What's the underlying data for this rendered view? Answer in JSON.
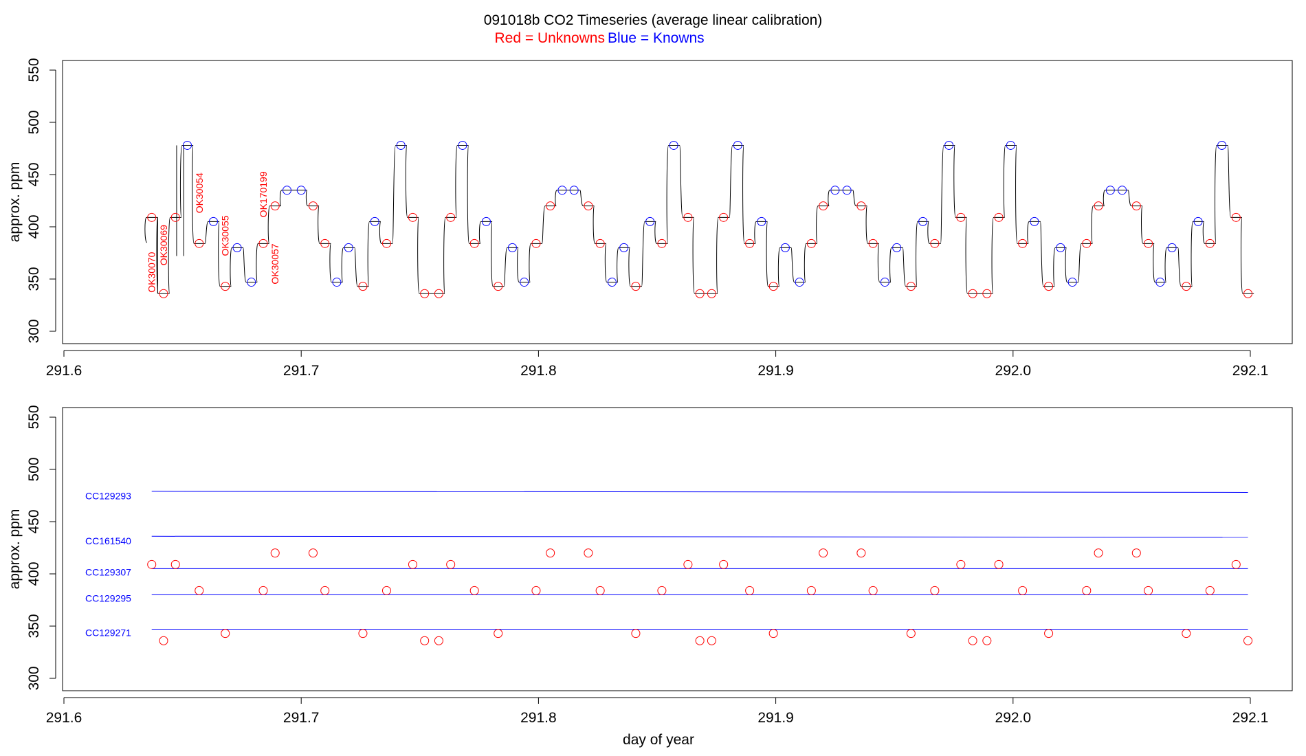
{
  "header": {
    "title": "091018b   CO2 Timeseries (average linear calibration)",
    "legend_red": "Red = Unknowns",
    "legend_blue": "Blue = Knowns"
  },
  "colors": {
    "unknown": "#ff0000",
    "known": "#0000ff",
    "trace": "#000000"
  },
  "chart_data": [
    {
      "type": "line",
      "panel": "top",
      "title": "091018b   CO2 Timeseries (average linear calibration)",
      "xlabel": "",
      "ylabel": "approx. ppm",
      "xlim": [
        291.6,
        292.1
      ],
      "ylim": [
        300,
        550
      ],
      "xticks": [
        "291.6",
        "291.7",
        "291.8",
        "291.9",
        "292.0",
        "292.1"
      ],
      "yticks": [
        "300",
        "350",
        "400",
        "450",
        "500",
        "550"
      ],
      "grid": false,
      "sample_labels": [
        {
          "text": "OK30070",
          "x": 291.637,
          "y": 337
        },
        {
          "text": "OK30069",
          "x": 291.642,
          "y": 363
        },
        {
          "text": "OK30054",
          "x": 291.657,
          "y": 413
        },
        {
          "text": "OK30055",
          "x": 291.668,
          "y": 372
        },
        {
          "text": "OK170199",
          "x": 291.684,
          "y": 409
        },
        {
          "text": "OK30057",
          "x": 291.689,
          "y": 345
        }
      ],
      "series": [
        {
          "name": "Unknowns",
          "color": "#ff0000",
          "x": [
            291.637,
            291.642,
            291.647,
            291.657,
            291.668,
            291.684,
            291.689,
            291.705,
            291.71,
            291.726,
            291.736,
            291.747,
            291.752,
            291.758,
            291.763,
            291.773,
            291.783,
            291.799,
            291.805,
            291.821,
            291.826,
            291.841,
            291.852,
            291.863,
            291.868,
            291.873,
            291.878,
            291.889,
            291.899,
            291.915,
            291.92,
            291.936,
            291.941,
            291.957,
            291.967,
            291.978,
            291.983,
            291.989,
            291.994,
            292.004,
            292.015,
            292.031,
            292.036,
            292.052,
            292.057,
            292.073,
            292.083,
            292.094,
            292.099
          ],
          "y": [
            409,
            336,
            409,
            384,
            343,
            384,
            420,
            420,
            384,
            343,
            384,
            409,
            336,
            336,
            409,
            384,
            343,
            384,
            420,
            420,
            384,
            343,
            384,
            409,
            336,
            336,
            409,
            384,
            343,
            384,
            420,
            420,
            384,
            343,
            384,
            409,
            336,
            336,
            409,
            384,
            343,
            384,
            420,
            420,
            384,
            343,
            384,
            409,
            336
          ]
        },
        {
          "name": "Knowns",
          "color": "#0000ff",
          "x": [
            291.652,
            291.663,
            291.673,
            291.679,
            291.694,
            291.7,
            291.715,
            291.72,
            291.731,
            291.742,
            291.768,
            291.778,
            291.789,
            291.794,
            291.81,
            291.815,
            291.831,
            291.836,
            291.847,
            291.857,
            291.884,
            291.894,
            291.904,
            291.91,
            291.925,
            291.93,
            291.946,
            291.951,
            291.962,
            291.973,
            291.999,
            292.009,
            292.02,
            292.025,
            292.041,
            292.046,
            292.062,
            292.067,
            292.078,
            292.088
          ],
          "y": [
            478,
            405,
            380,
            347,
            435,
            435,
            347,
            380,
            405,
            478,
            478,
            405,
            380,
            347,
            435,
            435,
            347,
            380,
            405,
            478,
            478,
            405,
            380,
            347,
            435,
            435,
            347,
            380,
            405,
            478,
            478,
            405,
            380,
            347,
            435,
            435,
            347,
            380,
            405,
            478
          ]
        }
      ]
    },
    {
      "type": "scatter",
      "panel": "bottom",
      "xlabel": "day of year",
      "ylabel": "approx. ppm",
      "xlim": [
        291.6,
        292.1
      ],
      "ylim": [
        300,
        550
      ],
      "xticks": [
        "291.6",
        "291.7",
        "291.8",
        "291.9",
        "292.0",
        "292.1"
      ],
      "yticks": [
        "300",
        "350",
        "400",
        "450",
        "500",
        "550"
      ],
      "grid": false,
      "reference_lines": [
        {
          "name": "CC129293",
          "y_start": 479,
          "y_end": 478,
          "x_start": 291.637,
          "x_end": 292.099
        },
        {
          "name": "CC161540",
          "y_start": 436,
          "y_end": 435,
          "x_start": 291.637,
          "x_end": 292.099
        },
        {
          "name": "CC129307",
          "y_start": 405,
          "y_end": 405,
          "x_start": 291.637,
          "x_end": 292.099
        },
        {
          "name": "CC129295",
          "y_start": 380,
          "y_end": 380,
          "x_start": 291.637,
          "x_end": 292.099
        },
        {
          "name": "CC129271",
          "y_start": 347,
          "y_end": 347,
          "x_start": 291.637,
          "x_end": 292.099
        }
      ],
      "series": [
        {
          "name": "Unknowns",
          "color": "#ff0000",
          "x": [
            291.637,
            291.642,
            291.647,
            291.657,
            291.668,
            291.684,
            291.689,
            291.705,
            291.71,
            291.726,
            291.736,
            291.747,
            291.752,
            291.758,
            291.763,
            291.773,
            291.783,
            291.799,
            291.805,
            291.821,
            291.826,
            291.841,
            291.852,
            291.863,
            291.868,
            291.873,
            291.878,
            291.889,
            291.899,
            291.915,
            291.92,
            291.936,
            291.941,
            291.957,
            291.967,
            291.978,
            291.983,
            291.989,
            291.994,
            292.004,
            292.015,
            292.031,
            292.036,
            292.052,
            292.057,
            292.073,
            292.083,
            292.094,
            292.099
          ],
          "y": [
            409,
            336,
            409,
            384,
            343,
            384,
            420,
            420,
            384,
            343,
            384,
            409,
            336,
            336,
            409,
            384,
            343,
            384,
            420,
            420,
            384,
            343,
            384,
            409,
            336,
            336,
            409,
            384,
            343,
            384,
            420,
            420,
            384,
            343,
            384,
            409,
            336,
            336,
            409,
            384,
            343,
            384,
            420,
            420,
            384,
            343,
            384,
            409,
            336
          ]
        }
      ]
    }
  ]
}
